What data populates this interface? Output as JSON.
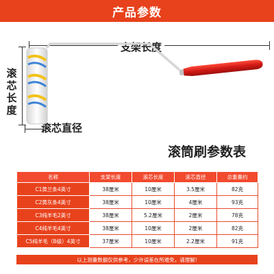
{
  "header": {
    "title": "产品参数"
  },
  "diagram": {
    "frame_length_label": "支架长度",
    "roller_length_label": "滚芯长度",
    "roller_diameter_label": "滚芯直径"
  },
  "table": {
    "title": "滚筒刷参数表",
    "columns": [
      "名称",
      "支架长度",
      "滚芯长度",
      "滚芯直径",
      "总重量约"
    ],
    "rows": [
      [
        "C1黄兰条4英寸",
        "38厘米",
        "10厘米",
        "3.5厘米",
        "82克"
      ],
      [
        "C2黄灰条4英寸",
        "38厘米",
        "10厘米",
        "4厘米",
        "93克"
      ],
      [
        "C3纯羊毛2英寸",
        "38厘米",
        "5.2厘米",
        "2厘米",
        "78克"
      ],
      [
        "C4纯羊毛4英寸",
        "38厘米",
        "10厘米",
        "2厘米",
        "82克"
      ],
      [
        "C5纯羊毛（B级）4英寸",
        "37厘米",
        "10厘米",
        "2.2厘米",
        "91克"
      ]
    ],
    "footer": "以上测量数据仅供参考，少许误差在所难免，请理解!"
  },
  "colors": {
    "banner": "#e8421c",
    "header_cell": "#f24a2e",
    "handle": "#d62020"
  }
}
